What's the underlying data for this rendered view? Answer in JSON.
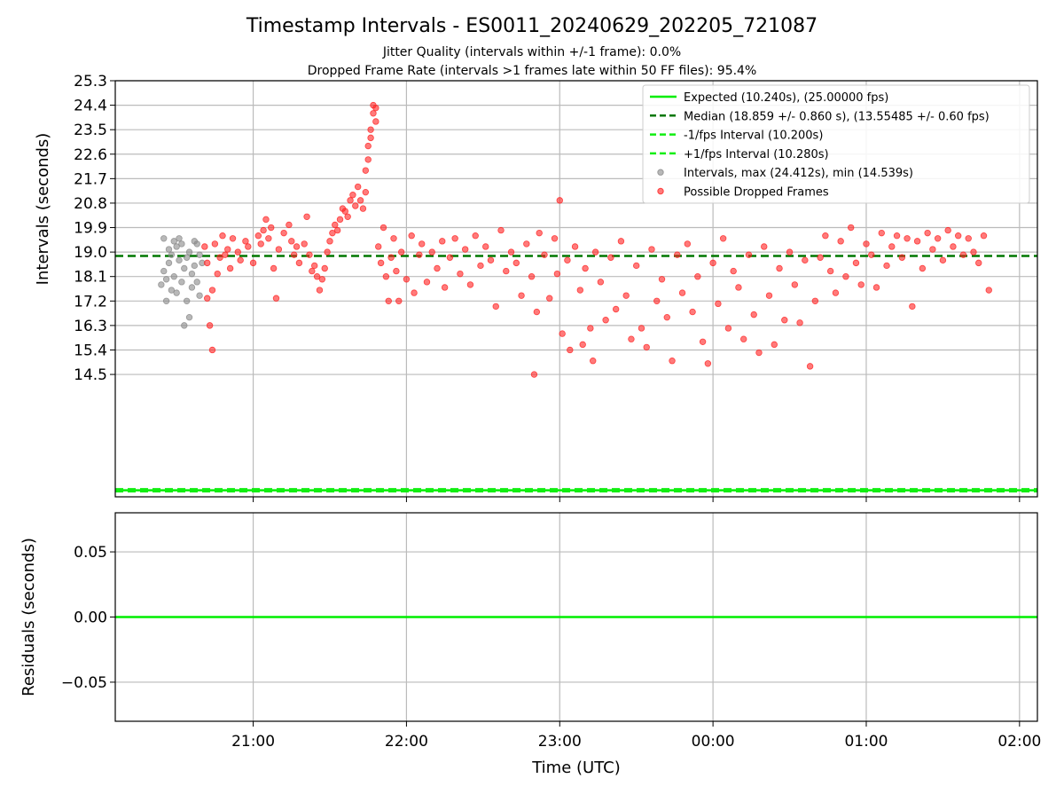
{
  "title": "Timestamp Intervals - ES0011_20240629_202205_721087",
  "subtitle1": "Jitter Quality (intervals within +/-1 frame): 0.0%",
  "subtitle2": "Dropped Frame Rate (intervals >1 frames late within 50 FF files): 95.4%",
  "colors": {
    "expected": "#00ee00",
    "median": "#007700",
    "interval": "#11ee11",
    "gray": "#888888",
    "red": "#ff2222",
    "grid": "#bbbbbb"
  },
  "chart_data": [
    {
      "type": "scatter",
      "xlabel": "",
      "ylabel": "Intervals (seconds)",
      "x_ticks": [
        "21:00",
        "22:00",
        "23:00",
        "00:00",
        "01:00",
        "02:00"
      ],
      "xlim": [
        "20:06",
        "02:07"
      ],
      "y_ticks": [
        "14.5",
        "15.4",
        "16.3",
        "17.2",
        "18.1",
        "19.0",
        "19.9",
        "20.8",
        "21.7",
        "22.6",
        "23.5",
        "24.4",
        "25.3"
      ],
      "ylim": [
        10.0,
        25.3
      ],
      "grid": true,
      "legend_position": "top-right",
      "lines": [
        {
          "name": "Expected (10.240s), (25.00000 fps)",
          "y": 10.24,
          "style": "solid",
          "color": "#00ee00"
        },
        {
          "name": "Median (18.859 +/- 0.860 s), (13.55485 +/- 0.60 fps)",
          "y": 18.859,
          "style": "dashed",
          "color": "#007700"
        },
        {
          "name": "-1/fps Interval (10.200s)",
          "y": 10.2,
          "style": "dashed",
          "color": "#11ee11"
        },
        {
          "name": "+1/fps Interval (10.280s)",
          "y": 10.28,
          "style": "dashed",
          "color": "#11ee11"
        }
      ],
      "series": [
        {
          "name": "Intervals, max (24.412s), min (14.539s)",
          "color": "#888888",
          "points": [
            [
              "20:24",
              17.8
            ],
            [
              "20:25",
              18.3
            ],
            [
              "20:25",
              19.5
            ],
            [
              "20:26",
              18.0
            ],
            [
              "20:26",
              17.2
            ],
            [
              "20:27",
              18.6
            ],
            [
              "20:27",
              19.1
            ],
            [
              "20:28",
              17.6
            ],
            [
              "20:28",
              18.9
            ],
            [
              "20:29",
              19.4
            ],
            [
              "20:29",
              18.1
            ],
            [
              "20:30",
              17.5
            ],
            [
              "20:30",
              19.2
            ],
            [
              "20:31",
              18.7
            ],
            [
              "20:31",
              19.5
            ],
            [
              "20:32",
              17.9
            ],
            [
              "20:32",
              19.3
            ],
            [
              "20:33",
              18.4
            ],
            [
              "20:33",
              16.3
            ],
            [
              "20:34",
              17.2
            ],
            [
              "20:34",
              18.8
            ],
            [
              "20:35",
              19.0
            ],
            [
              "20:35",
              16.6
            ],
            [
              "20:36",
              18.2
            ],
            [
              "20:36",
              17.7
            ],
            [
              "20:37",
              19.4
            ],
            [
              "20:37",
              18.5
            ],
            [
              "20:38",
              17.9
            ],
            [
              "20:38",
              19.3
            ],
            [
              "20:39",
              18.9
            ],
            [
              "20:39",
              17.4
            ],
            [
              "20:40",
              18.6
            ]
          ]
        },
        {
          "name": "Possible Dropped Frames",
          "color": "#ff2222",
          "points": [
            [
              "20:41",
              19.2
            ],
            [
              "20:42",
              18.6
            ],
            [
              "20:42",
              17.3
            ],
            [
              "20:43",
              16.3
            ],
            [
              "20:44",
              15.4
            ],
            [
              "20:44",
              17.6
            ],
            [
              "20:45",
              19.3
            ],
            [
              "20:46",
              18.2
            ],
            [
              "20:47",
              18.8
            ],
            [
              "20:48",
              19.6
            ],
            [
              "20:49",
              18.9
            ],
            [
              "20:50",
              19.1
            ],
            [
              "20:51",
              18.4
            ],
            [
              "20:52",
              19.5
            ],
            [
              "20:54",
              19.0
            ],
            [
              "20:55",
              18.7
            ],
            [
              "20:57",
              19.4
            ],
            [
              "20:58",
              19.2
            ],
            [
              "21:00",
              18.6
            ],
            [
              "21:02",
              19.6
            ],
            [
              "21:03",
              19.3
            ],
            [
              "21:04",
              19.8
            ],
            [
              "21:05",
              20.2
            ],
            [
              "21:06",
              19.5
            ],
            [
              "21:07",
              19.9
            ],
            [
              "21:08",
              18.4
            ],
            [
              "21:09",
              17.3
            ],
            [
              "21:10",
              19.1
            ],
            [
              "21:12",
              19.7
            ],
            [
              "21:14",
              20.0
            ],
            [
              "21:15",
              19.4
            ],
            [
              "21:16",
              18.9
            ],
            [
              "21:17",
              19.2
            ],
            [
              "21:18",
              18.6
            ],
            [
              "21:20",
              19.3
            ],
            [
              "21:21",
              20.3
            ],
            [
              "21:22",
              18.9
            ],
            [
              "21:23",
              18.3
            ],
            [
              "21:24",
              18.5
            ],
            [
              "21:25",
              18.1
            ],
            [
              "21:26",
              17.6
            ],
            [
              "21:27",
              18.0
            ],
            [
              "21:28",
              18.4
            ],
            [
              "21:29",
              19.0
            ],
            [
              "21:30",
              19.4
            ],
            [
              "21:31",
              19.7
            ],
            [
              "21:32",
              20.0
            ],
            [
              "21:33",
              19.8
            ],
            [
              "21:34",
              20.2
            ],
            [
              "21:35",
              20.6
            ],
            [
              "21:36",
              20.5
            ],
            [
              "21:37",
              20.3
            ],
            [
              "21:38",
              20.9
            ],
            [
              "21:39",
              21.1
            ],
            [
              "21:40",
              20.7
            ],
            [
              "21:41",
              21.4
            ],
            [
              "21:42",
              20.9
            ],
            [
              "21:43",
              20.6
            ],
            [
              "21:44",
              21.2
            ],
            [
              "21:44",
              22.0
            ],
            [
              "21:45",
              22.4
            ],
            [
              "21:45",
              22.9
            ],
            [
              "21:46",
              23.2
            ],
            [
              "21:46",
              23.5
            ],
            [
              "21:47",
              24.1
            ],
            [
              "21:47",
              24.4
            ],
            [
              "21:48",
              23.8
            ],
            [
              "21:48",
              24.3
            ],
            [
              "21:49",
              19.2
            ],
            [
              "21:50",
              18.6
            ],
            [
              "21:51",
              19.9
            ],
            [
              "21:52",
              18.1
            ],
            [
              "21:53",
              17.2
            ],
            [
              "21:54",
              18.8
            ],
            [
              "21:55",
              19.5
            ],
            [
              "21:56",
              18.3
            ],
            [
              "21:57",
              17.2
            ],
            [
              "21:58",
              19.0
            ],
            [
              "22:00",
              18.0
            ],
            [
              "22:02",
              19.6
            ],
            [
              "22:03",
              17.5
            ],
            [
              "22:05",
              18.9
            ],
            [
              "22:06",
              19.3
            ],
            [
              "22:08",
              17.9
            ],
            [
              "22:10",
              19.0
            ],
            [
              "22:12",
              18.4
            ],
            [
              "22:14",
              19.4
            ],
            [
              "22:15",
              17.7
            ],
            [
              "22:17",
              18.8
            ],
            [
              "22:19",
              19.5
            ],
            [
              "22:21",
              18.2
            ],
            [
              "22:23",
              19.1
            ],
            [
              "22:25",
              17.8
            ],
            [
              "22:27",
              19.6
            ],
            [
              "22:29",
              18.5
            ],
            [
              "22:31",
              19.2
            ],
            [
              "22:33",
              18.7
            ],
            [
              "22:35",
              17.0
            ],
            [
              "22:37",
              19.8
            ],
            [
              "22:39",
              18.3
            ],
            [
              "22:41",
              19.0
            ],
            [
              "22:43",
              18.6
            ],
            [
              "22:45",
              17.4
            ],
            [
              "22:47",
              19.3
            ],
            [
              "22:49",
              18.1
            ],
            [
              "22:50",
              14.5
            ],
            [
              "22:51",
              16.8
            ],
            [
              "22:52",
              19.7
            ],
            [
              "22:54",
              18.9
            ],
            [
              "22:56",
              17.3
            ],
            [
              "22:58",
              19.5
            ],
            [
              "22:59",
              18.2
            ],
            [
              "23:00",
              20.9
            ],
            [
              "23:01",
              16.0
            ],
            [
              "23:03",
              18.7
            ],
            [
              "23:04",
              15.4
            ],
            [
              "23:06",
              19.2
            ],
            [
              "23:08",
              17.6
            ],
            [
              "23:09",
              15.6
            ],
            [
              "23:10",
              18.4
            ],
            [
              "23:12",
              16.2
            ],
            [
              "23:13",
              15.0
            ],
            [
              "23:14",
              19.0
            ],
            [
              "23:16",
              17.9
            ],
            [
              "23:18",
              16.5
            ],
            [
              "23:20",
              18.8
            ],
            [
              "23:22",
              16.9
            ],
            [
              "23:24",
              19.4
            ],
            [
              "23:26",
              17.4
            ],
            [
              "23:28",
              15.8
            ],
            [
              "23:30",
              18.5
            ],
            [
              "23:32",
              16.2
            ],
            [
              "23:34",
              15.5
            ],
            [
              "23:36",
              19.1
            ],
            [
              "23:38",
              17.2
            ],
            [
              "23:40",
              18.0
            ],
            [
              "23:42",
              16.6
            ],
            [
              "23:44",
              15.0
            ],
            [
              "23:46",
              18.9
            ],
            [
              "23:48",
              17.5
            ],
            [
              "23:50",
              19.3
            ],
            [
              "23:52",
              16.8
            ],
            [
              "23:54",
              18.1
            ],
            [
              "23:56",
              15.7
            ],
            [
              "23:58",
              14.9
            ],
            [
              "00:00",
              18.6
            ],
            [
              "00:02",
              17.1
            ],
            [
              "00:04",
              19.5
            ],
            [
              "00:06",
              16.2
            ],
            [
              "00:08",
              18.3
            ],
            [
              "00:10",
              17.7
            ],
            [
              "00:12",
              15.8
            ],
            [
              "00:14",
              18.9
            ],
            [
              "00:16",
              16.7
            ],
            [
              "00:18",
              15.3
            ],
            [
              "00:20",
              19.2
            ],
            [
              "00:22",
              17.4
            ],
            [
              "00:24",
              15.6
            ],
            [
              "00:26",
              18.4
            ],
            [
              "00:28",
              16.5
            ],
            [
              "00:30",
              19.0
            ],
            [
              "00:32",
              17.8
            ],
            [
              "00:34",
              16.4
            ],
            [
              "00:36",
              18.7
            ],
            [
              "00:38",
              14.8
            ],
            [
              "00:40",
              17.2
            ],
            [
              "00:42",
              18.8
            ],
            [
              "00:44",
              19.6
            ],
            [
              "00:46",
              18.3
            ],
            [
              "00:48",
              17.5
            ],
            [
              "00:50",
              19.4
            ],
            [
              "00:52",
              18.1
            ],
            [
              "00:54",
              19.9
            ],
            [
              "00:56",
              18.6
            ],
            [
              "00:58",
              17.8
            ],
            [
              "01:00",
              19.3
            ],
            [
              "01:02",
              18.9
            ],
            [
              "01:04",
              17.7
            ],
            [
              "01:06",
              19.7
            ],
            [
              "01:08",
              18.5
            ],
            [
              "01:10",
              19.2
            ],
            [
              "01:12",
              19.6
            ],
            [
              "01:14",
              18.8
            ],
            [
              "01:16",
              19.5
            ],
            [
              "01:18",
              17.0
            ],
            [
              "01:20",
              19.4
            ],
            [
              "01:22",
              18.4
            ],
            [
              "01:24",
              19.7
            ],
            [
              "01:26",
              19.1
            ],
            [
              "01:28",
              19.5
            ],
            [
              "01:30",
              18.7
            ],
            [
              "01:32",
              19.8
            ],
            [
              "01:34",
              19.2
            ],
            [
              "01:36",
              19.6
            ],
            [
              "01:38",
              18.9
            ],
            [
              "01:40",
              19.5
            ],
            [
              "01:42",
              19.0
            ],
            [
              "01:44",
              18.6
            ],
            [
              "01:46",
              19.6
            ],
            [
              "01:48",
              17.6
            ]
          ]
        }
      ]
    },
    {
      "type": "line",
      "xlabel": "Time (UTC)",
      "ylabel": "Residuals (seconds)",
      "x_ticks": [
        "21:00",
        "22:00",
        "23:00",
        "00:00",
        "01:00",
        "02:00"
      ],
      "xlim": [
        "20:06",
        "02:07"
      ],
      "y_ticks": [
        "0.05",
        "0.00",
        "−0.05"
      ],
      "ylim": [
        -0.08,
        0.08
      ],
      "grid": true,
      "series": [
        {
          "color": "#00ee00",
          "y": 0.0
        }
      ]
    }
  ]
}
